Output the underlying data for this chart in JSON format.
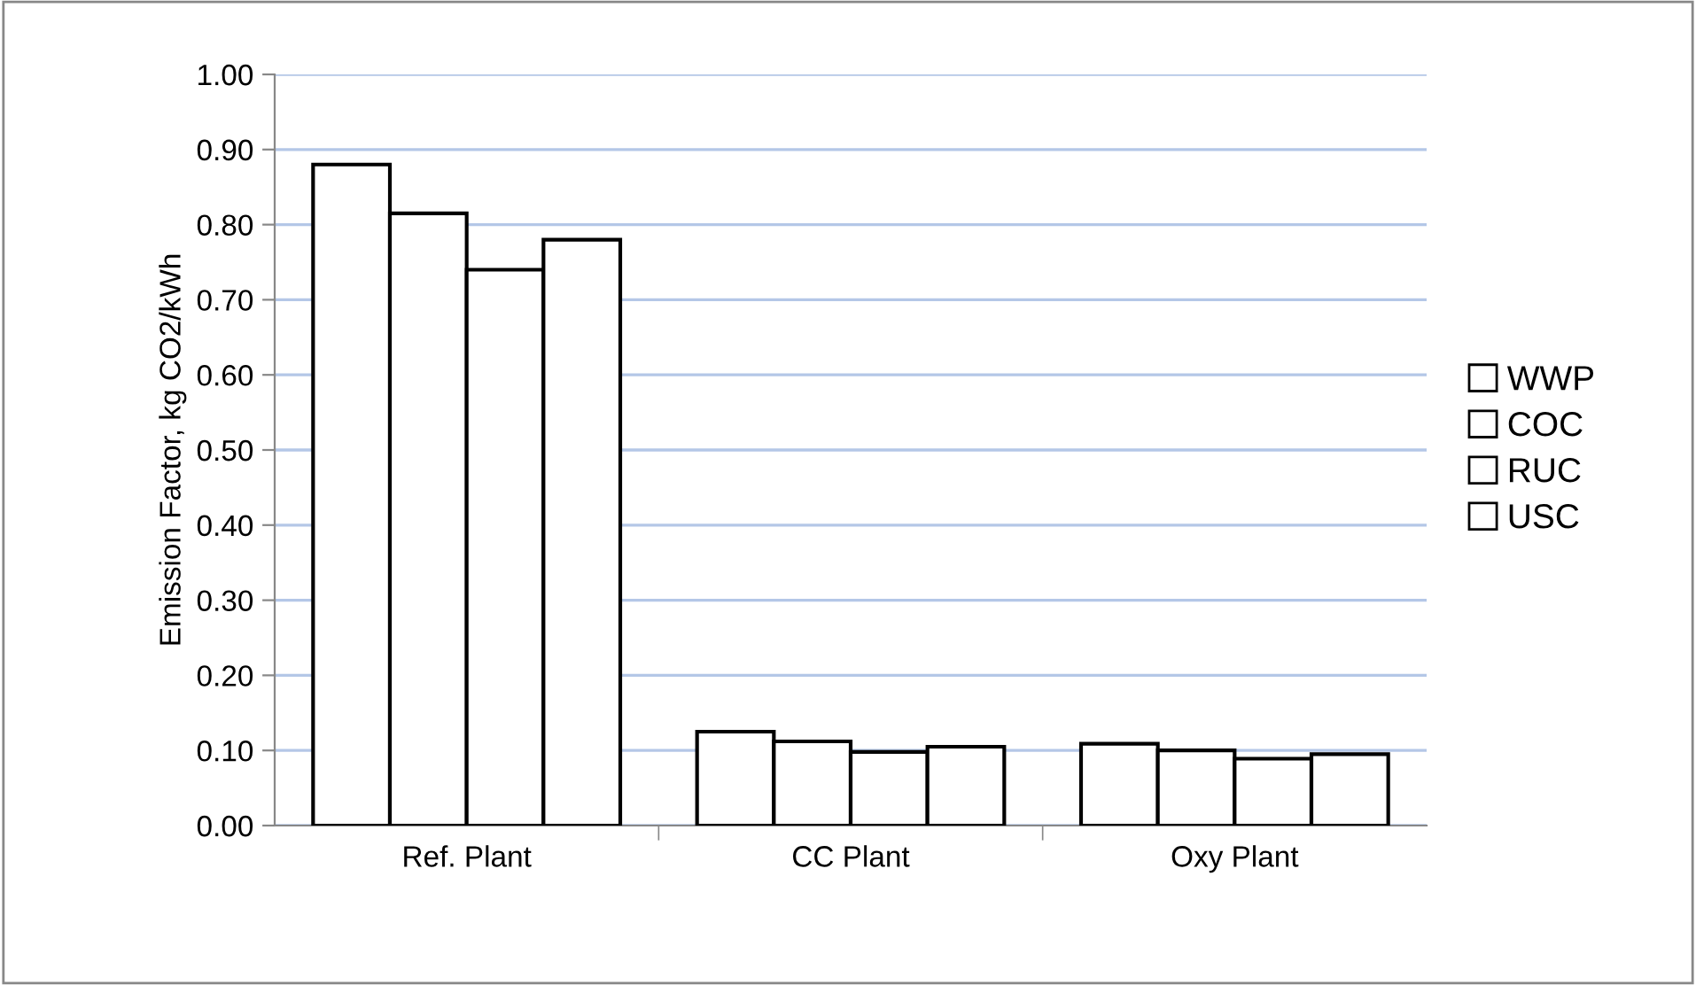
{
  "chart_data": {
    "type": "bar",
    "ylabel": "Emission Factor, kg CO2/kWh",
    "categories": [
      "Ref. Plant",
      "CC Plant",
      "Oxy Plant"
    ],
    "series": [
      {
        "name": "WWP",
        "color": "#ffffff",
        "values": [
          0.88,
          0.125,
          0.109
        ]
      },
      {
        "name": "COC",
        "color": "#ffffff",
        "values": [
          0.815,
          0.112,
          0.1
        ]
      },
      {
        "name": "RUC",
        "color": "#ffffff",
        "values": [
          0.74,
          0.098,
          0.089
        ]
      },
      {
        "name": "USC",
        "color": "#ffffff",
        "values": [
          0.78,
          0.105,
          0.095
        ]
      }
    ],
    "ylim": [
      0,
      1
    ],
    "yticks": [
      {
        "value": 0,
        "label": "0.00"
      },
      {
        "value": 0.1,
        "label": "0.10"
      },
      {
        "value": 0.2,
        "label": "0.20"
      },
      {
        "value": 0.3,
        "label": "0.30"
      },
      {
        "value": 0.4,
        "label": "0.40"
      },
      {
        "value": 0.5,
        "label": "0.50"
      },
      {
        "value": 0.6,
        "label": "0.60"
      },
      {
        "value": 0.7,
        "label": "0.70"
      },
      {
        "value": 0.8,
        "label": "0.80"
      },
      {
        "value": 0.9,
        "label": "0.90"
      },
      {
        "value": 1,
        "label": "1.00"
      }
    ],
    "grid": "y",
    "legend": "right"
  }
}
